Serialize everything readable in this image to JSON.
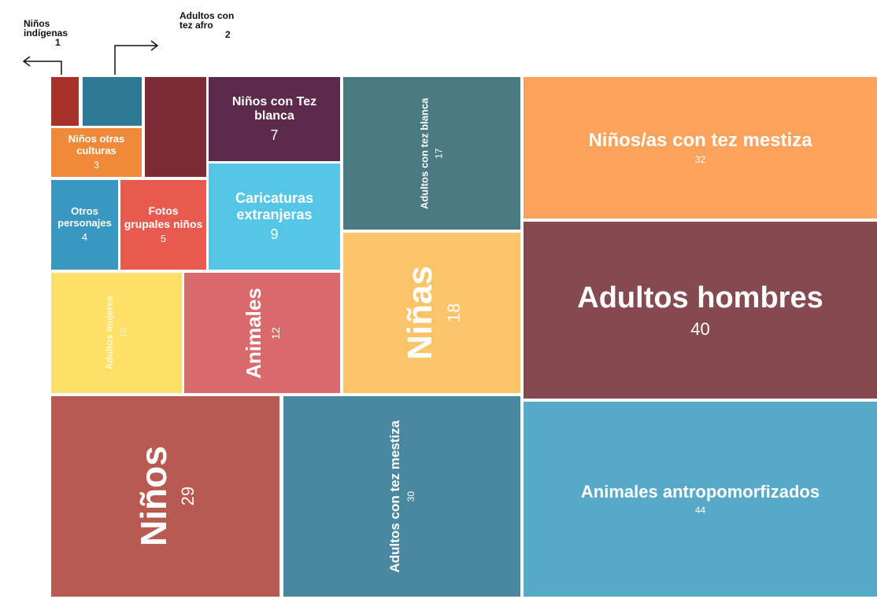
{
  "chart_data": {
    "type": "treemap",
    "categories": [
      "Niños indígenas",
      "Adultos con tez afro",
      "Niños otras culturas",
      null,
      "Otros personajes",
      "Fotos grupales niños",
      "Niños con Tez blanca",
      "Caricaturas extranjeras",
      "Adultos con tez blanca",
      "Niños/as con tez mestiza",
      "Adultos mujeres",
      "Animales",
      "Niñas",
      "Adultos hombres",
      "Niños",
      "Adultos con tez mestiza",
      "Animales antropomorfizados"
    ],
    "values": [
      1,
      2,
      3,
      4,
      4,
      5,
      7,
      9,
      17,
      32,
      10,
      12,
      18,
      40,
      29,
      30,
      44
    ],
    "colors": [
      "#a8322a",
      "#2e7a96",
      "#f08a3a",
      "#7a2b35",
      "#3a98c0",
      "#e85a50",
      "#5c2a4a",
      "#56c6e6",
      "#4a7a82",
      "#fba35c",
      "#fde06a",
      "#d9696a",
      "#fcc468",
      "#854a50",
      "#b85a52",
      "#4a88a0",
      "#58a8c8"
    ]
  }
}
